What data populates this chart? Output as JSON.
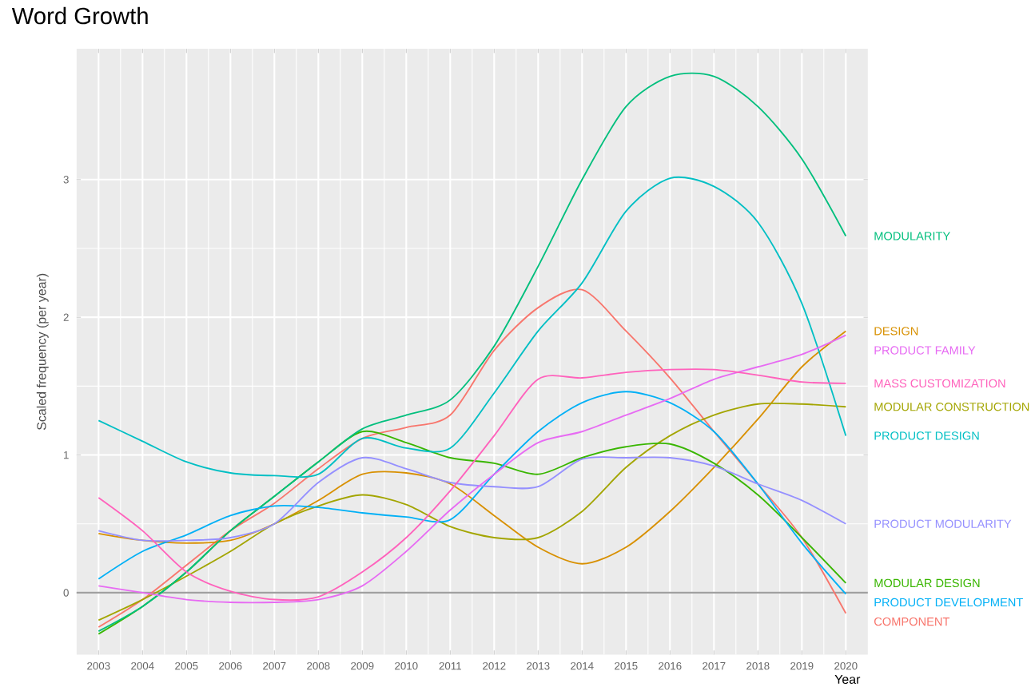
{
  "chart_data": {
    "type": "line",
    "title": "Word Growth",
    "xlabel": "Year",
    "ylabel": "Scaled frequency (per year)",
    "x": [
      2003,
      2004,
      2005,
      2006,
      2007,
      2008,
      2009,
      2010,
      2011,
      2012,
      2013,
      2014,
      2015,
      2016,
      2017,
      2018,
      2019,
      2020
    ],
    "xlim": [
      2002.5,
      2020.5
    ],
    "xticks": [
      2003,
      2004,
      2005,
      2006,
      2007,
      2008,
      2009,
      2010,
      2011,
      2012,
      2013,
      2014,
      2015,
      2016,
      2017,
      2018,
      2019,
      2020
    ],
    "ylim": [
      -0.45,
      3.95
    ],
    "yticks": [
      0,
      1,
      2,
      3
    ],
    "grid": true,
    "legend": false,
    "marker": "none",
    "line_style": "solid",
    "ref_lines": [
      {
        "axis": "y",
        "value": 0,
        "color": "#a0a0a0"
      }
    ],
    "series": [
      {
        "name": "COMPONENT",
        "color": "#f8766d",
        "values": [
          -0.25,
          -0.05,
          0.2,
          0.45,
          0.65,
          0.9,
          1.12,
          1.2,
          1.29,
          1.76,
          2.07,
          2.2,
          1.9,
          1.56,
          1.17,
          0.79,
          0.4,
          -0.15
        ]
      },
      {
        "name": "DESIGN",
        "color": "#d89000",
        "values": [
          0.43,
          0.38,
          0.36,
          0.38,
          0.5,
          0.67,
          0.86,
          0.87,
          0.79,
          0.56,
          0.33,
          0.21,
          0.33,
          0.59,
          0.91,
          1.26,
          1.64,
          1.9
        ]
      },
      {
        "name": "MODULAR CONSTRUCTION",
        "color": "#a3a500",
        "values": [
          -0.2,
          -0.05,
          0.12,
          0.3,
          0.5,
          0.63,
          0.71,
          0.64,
          0.48,
          0.4,
          0.4,
          0.59,
          0.91,
          1.14,
          1.29,
          1.37,
          1.37,
          1.35
        ]
      },
      {
        "name": "MODULAR DESIGN",
        "color": "#39b600",
        "values": [
          -0.3,
          -0.1,
          0.15,
          0.45,
          0.7,
          0.95,
          1.17,
          1.09,
          0.98,
          0.94,
          0.86,
          0.98,
          1.06,
          1.08,
          0.94,
          0.71,
          0.4,
          0.07
        ]
      },
      {
        "name": "MODULARITY",
        "color": "#00bf7d",
        "values": [
          -0.28,
          -0.1,
          0.15,
          0.45,
          0.7,
          0.95,
          1.19,
          1.29,
          1.4,
          1.79,
          2.37,
          3.0,
          3.53,
          3.75,
          3.75,
          3.53,
          3.15,
          2.59
        ]
      },
      {
        "name": "PRODUCT DESIGN",
        "color": "#00bfc4",
        "values": [
          1.25,
          1.1,
          0.95,
          0.87,
          0.85,
          0.86,
          1.12,
          1.05,
          1.05,
          1.45,
          1.9,
          2.25,
          2.77,
          3.01,
          2.95,
          2.69,
          2.1,
          1.14
        ]
      },
      {
        "name": "PRODUCT DEVELOPMENT",
        "color": "#00b0f6",
        "values": [
          0.1,
          0.3,
          0.42,
          0.56,
          0.63,
          0.62,
          0.58,
          0.55,
          0.53,
          0.86,
          1.17,
          1.38,
          1.46,
          1.38,
          1.17,
          0.79,
          0.36,
          -0.01
        ]
      },
      {
        "name": "PRODUCT MODULARITY",
        "color": "#9590ff",
        "values": [
          0.45,
          0.38,
          0.38,
          0.4,
          0.5,
          0.8,
          0.98,
          0.9,
          0.8,
          0.77,
          0.77,
          0.97,
          0.98,
          0.98,
          0.92,
          0.79,
          0.67,
          0.5
        ]
      },
      {
        "name": "PRODUCT FAMILY",
        "color": "#e76bf3",
        "values": [
          0.05,
          0.0,
          -0.05,
          -0.07,
          -0.07,
          -0.05,
          0.05,
          0.3,
          0.6,
          0.86,
          1.09,
          1.17,
          1.29,
          1.41,
          1.55,
          1.64,
          1.73,
          1.87
        ]
      },
      {
        "name": "MASS CUSTOMIZATION",
        "color": "#ff62bc",
        "values": [
          0.69,
          0.45,
          0.15,
          0.01,
          -0.05,
          -0.03,
          0.15,
          0.4,
          0.74,
          1.14,
          1.55,
          1.56,
          1.6,
          1.62,
          1.62,
          1.58,
          1.53,
          1.52
        ]
      }
    ]
  }
}
